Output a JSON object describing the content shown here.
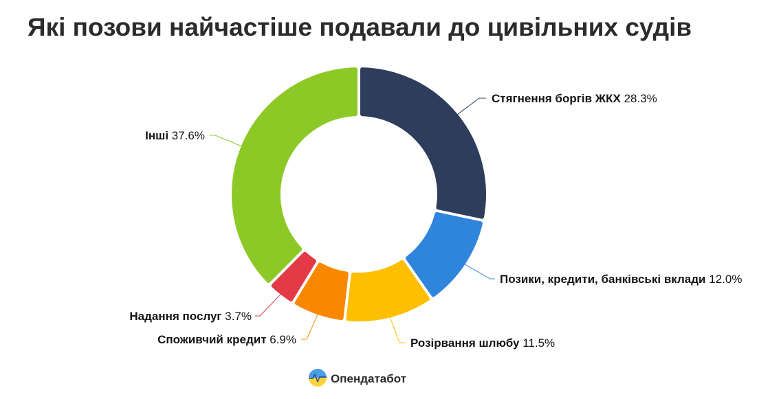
{
  "chart_data": {
    "type": "pie",
    "variant": "donut",
    "title": "Які позови найчастіше подавали до цивільних судів",
    "unit": "%",
    "legend": "none",
    "slices": [
      {
        "label": "Стягнення боргів ЖКХ",
        "value": 28.3,
        "value_text": "28.3%",
        "color": "#2e3d5c"
      },
      {
        "label": "Позики, кредити, банківські вклади",
        "value": 12.0,
        "value_text": "12.0%",
        "color": "#2f84dc"
      },
      {
        "label": "Розірвання шлюбу",
        "value": 11.5,
        "value_text": "11.5%",
        "color": "#fdbf00"
      },
      {
        "label": "Споживчий кредит",
        "value": 6.9,
        "value_text": "6.9%",
        "color": "#f98800"
      },
      {
        "label": "Надання послуг",
        "value": 3.7,
        "value_text": "3.7%",
        "color": "#e43a47"
      },
      {
        "label": "Інші",
        "value": 37.6,
        "value_text": "37.6%",
        "color": "#8dc926"
      }
    ]
  },
  "brand": {
    "name": "Опендатабот",
    "icon": "opendatabot-logo-icon",
    "colors": {
      "top": "#4a9be8",
      "bottom": "#ffd43b",
      "line": "#1d4f91"
    }
  }
}
